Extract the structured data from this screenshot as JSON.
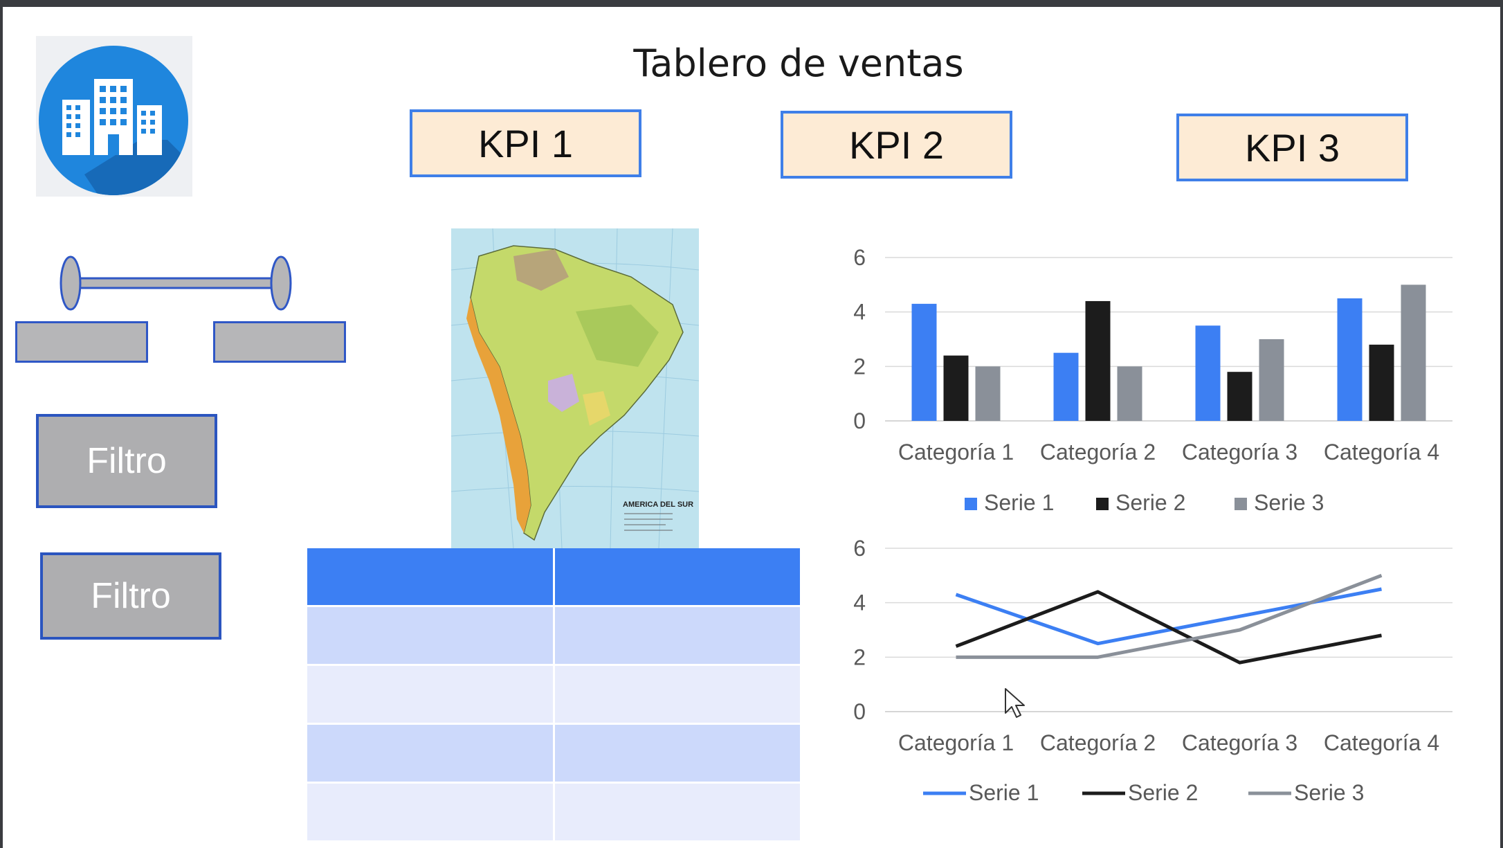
{
  "dashboard": {
    "title": "Tablero de ventas",
    "kpis": [
      {
        "label": "KPI 1"
      },
      {
        "label": "KPI 2"
      },
      {
        "label": "KPI 3"
      }
    ],
    "filters": [
      {
        "label": "Filtro"
      },
      {
        "label": "Filtro"
      }
    ],
    "map": {
      "caption": "AMERICA DEL SUR"
    },
    "table": {
      "header": [
        "",
        ""
      ],
      "rows": [
        [
          "",
          ""
        ],
        [
          "",
          ""
        ],
        [
          "",
          ""
        ],
        [
          "",
          ""
        ]
      ]
    }
  },
  "icons": {
    "logo": "buildings-icon",
    "cursor": "mouse-pointer-icon"
  },
  "colors": {
    "serie1": "#3c7ff3",
    "serie2": "#1c1c1c",
    "serie3": "#8a9099",
    "kpi_fill": "#fdebd5",
    "kpi_border": "#3f7fe8",
    "filter_fill": "#aeaeb0",
    "table_header": "#3c7ff3"
  },
  "chart_data": [
    {
      "type": "bar",
      "categories": [
        "Categoría 1",
        "Categoría 2",
        "Categoría 3",
        "Categoría 4"
      ],
      "series": [
        {
          "name": "Serie 1",
          "values": [
            4.3,
            2.5,
            3.5,
            4.5
          ]
        },
        {
          "name": "Serie 2",
          "values": [
            2.4,
            4.4,
            1.8,
            2.8
          ]
        },
        {
          "name": "Serie 3",
          "values": [
            2,
            2,
            3,
            5
          ]
        }
      ],
      "yticks": [
        0,
        2,
        4,
        6
      ],
      "ylim": [
        0,
        6
      ],
      "grid": true,
      "legend": "bottom"
    },
    {
      "type": "line",
      "categories": [
        "Categoría 1",
        "Categoría 2",
        "Categoría 3",
        "Categoría 4"
      ],
      "series": [
        {
          "name": "Serie 1",
          "values": [
            4.3,
            2.5,
            3.5,
            4.5
          ]
        },
        {
          "name": "Serie 2",
          "values": [
            2.4,
            4.4,
            1.8,
            2.8
          ]
        },
        {
          "name": "Serie 3",
          "values": [
            2,
            2,
            3,
            5
          ]
        }
      ],
      "yticks": [
        0,
        2,
        4,
        6
      ],
      "ylim": [
        0,
        6
      ],
      "grid": true,
      "legend": "bottom"
    }
  ]
}
